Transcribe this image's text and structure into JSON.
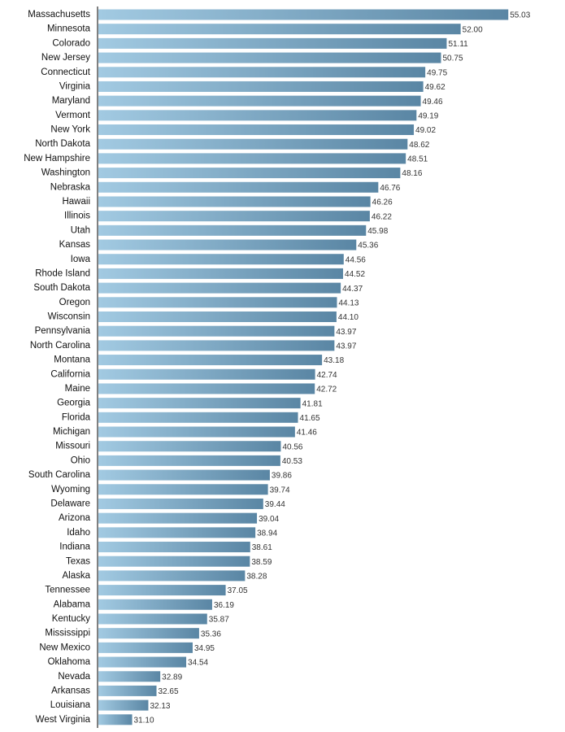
{
  "chart_data": {
    "type": "barh",
    "categories": [
      "Massachusetts",
      "Minnesota",
      "Colorado",
      "New Jersey",
      "Connecticut",
      "Virginia",
      "Maryland",
      "Vermont",
      "New York",
      "North Dakota",
      "New Hampshire",
      "Washington",
      "Nebraska",
      "Hawaii",
      "Illinois",
      "Utah",
      "Kansas",
      "Iowa",
      "Rhode Island",
      "South Dakota",
      "Oregon",
      "Wisconsin",
      "Pennsylvania",
      "North Carolina",
      "Montana",
      "California",
      "Maine",
      "Georgia",
      "Florida",
      "Michigan",
      "Missouri",
      "Ohio",
      "South Carolina",
      "Wyoming",
      "Delaware",
      "Arizona",
      "Idaho",
      "Indiana",
      "Texas",
      "Alaska",
      "Tennessee",
      "Alabama",
      "Kentucky",
      "Mississippi",
      "New Mexico",
      "Oklahoma",
      "Nevada",
      "Arkansas",
      "Louisiana",
      "West Virginia"
    ],
    "values": [
      55.03,
      52.0,
      51.11,
      50.75,
      49.75,
      49.62,
      49.46,
      49.19,
      49.02,
      48.62,
      48.51,
      48.16,
      46.76,
      46.26,
      46.22,
      45.98,
      45.36,
      44.56,
      44.52,
      44.37,
      44.13,
      44.1,
      43.97,
      43.97,
      43.18,
      42.74,
      42.72,
      41.81,
      41.65,
      41.46,
      40.56,
      40.53,
      39.86,
      39.74,
      39.44,
      39.04,
      38.94,
      38.61,
      38.59,
      38.28,
      37.05,
      36.19,
      35.87,
      35.36,
      34.95,
      34.54,
      32.89,
      32.65,
      32.13,
      31.1
    ],
    "value_labels": [
      "55.03",
      "52.00",
      "51.11",
      "50.75",
      "49.75",
      "49.62",
      "49.46",
      "49.19",
      "49.02",
      "48.62",
      "48.51",
      "48.16",
      "46.76",
      "46.26",
      "46.22",
      "45.98",
      "45.36",
      "44.56",
      "44.52",
      "44.37",
      "44.13",
      "44.10",
      "43.97",
      "43.97",
      "43.18",
      "42.74",
      "42.72",
      "41.81",
      "41.65",
      "41.46",
      "40.56",
      "40.53",
      "39.86",
      "39.74",
      "39.44",
      "39.04",
      "38.94",
      "38.61",
      "38.59",
      "38.28",
      "37.05",
      "36.19",
      "35.87",
      "35.36",
      "34.95",
      "34.54",
      "32.89",
      "32.65",
      "32.13",
      "31.10"
    ],
    "xlim": [
      28.9,
      56
    ],
    "gradient": [
      "#a2cae2",
      "#5a86a4"
    ]
  }
}
